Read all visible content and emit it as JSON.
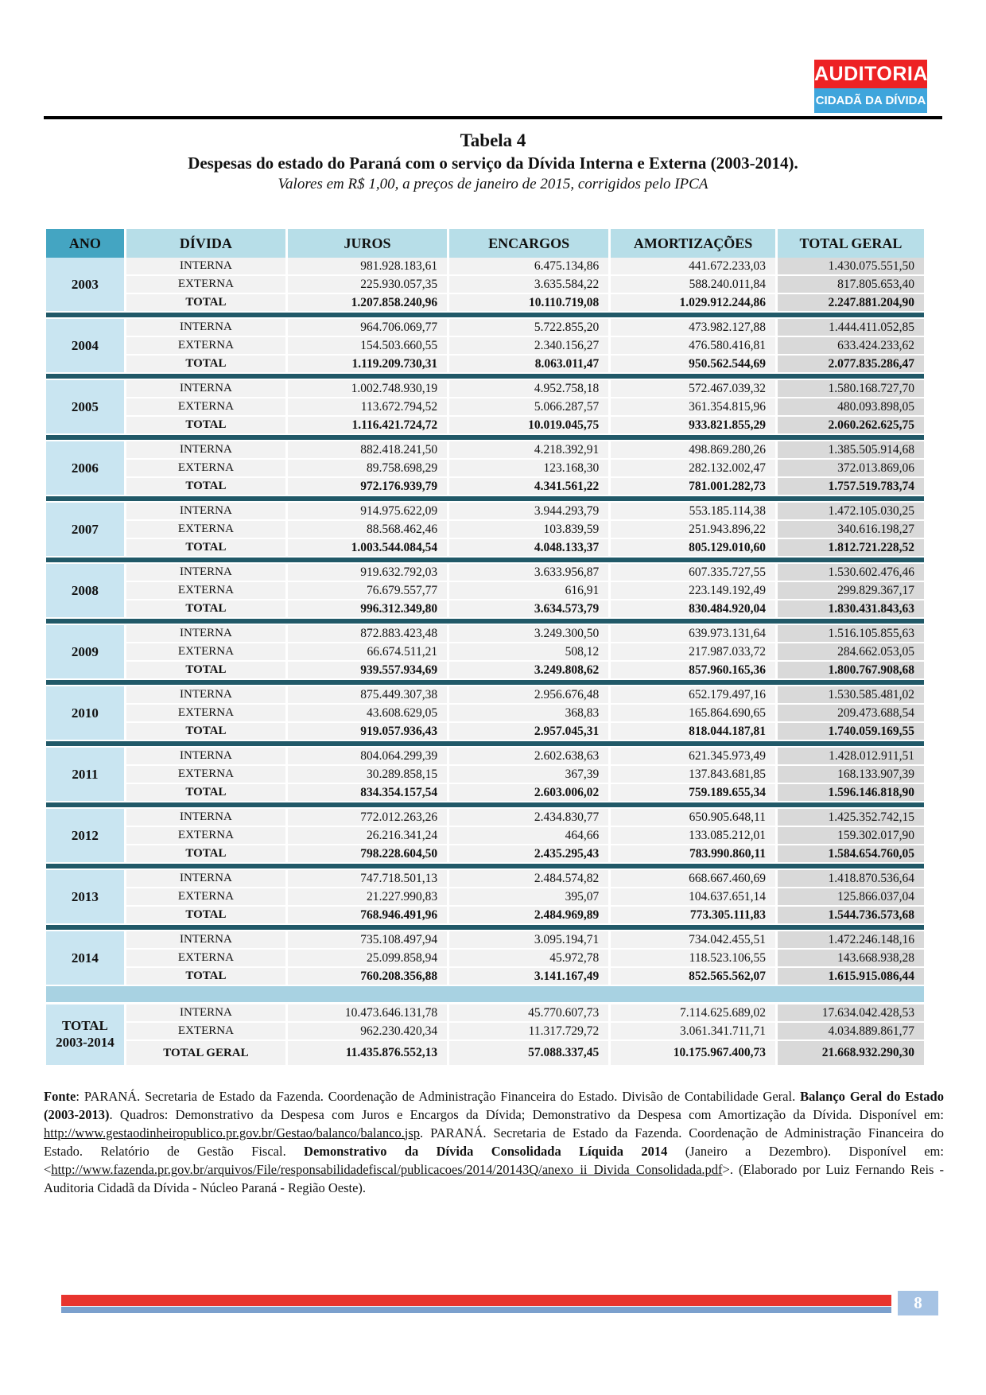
{
  "colors": {
    "logo_red": "#ED2224",
    "logo_blue": "#3FA5DC",
    "header_ano_bg": "#44A5C2",
    "header_bg": "#B7DEE8",
    "year_bg": "#C9E5F1",
    "cell_bg": "#F2F2F2",
    "total_col_bg": "#D9D9D9",
    "separator": "#215968",
    "band_bg": "#A8D2E2",
    "footer_red": "#E8342E",
    "footer_blue": "#7BA0CD",
    "page_box_bg": "#A6C3E4"
  },
  "logo": {
    "line1": "AUDITORIA",
    "line2": "CIDADÃ DA DÍVIDA"
  },
  "title": {
    "main": "Tabela 4",
    "subtitle": "Despesas do estado do Paraná com o serviço da Dívida Interna e Externa (2003-2014).",
    "note": "Valores em R$ 1,00, a preços de janeiro de 2015, corrigidos pelo IPCA"
  },
  "table": {
    "columns": [
      "ANO",
      "DÍVIDA",
      "JUROS",
      "ENCARGOS",
      "AMORTIZAÇÕES",
      "TOTAL GERAL"
    ],
    "row_labels": {
      "interna": "INTERNA",
      "externa": "EXTERNA",
      "total": "TOTAL",
      "total_geral": "TOTAL GERAL"
    },
    "years": [
      {
        "ano": "2003",
        "interna": [
          "981.928.183,61",
          "6.475.134,86",
          "441.672.233,03",
          "1.430.075.551,50"
        ],
        "externa": [
          "225.930.057,35",
          "3.635.584,22",
          "588.240.011,84",
          "817.805.653,40"
        ],
        "total": [
          "1.207.858.240,96",
          "10.110.719,08",
          "1.029.912.244,86",
          "2.247.881.204,90"
        ]
      },
      {
        "ano": "2004",
        "interna": [
          "964.706.069,77",
          "5.722.855,20",
          "473.982.127,88",
          "1.444.411.052,85"
        ],
        "externa": [
          "154.503.660,55",
          "2.340.156,27",
          "476.580.416,81",
          "633.424.233,62"
        ],
        "total": [
          "1.119.209.730,31",
          "8.063.011,47",
          "950.562.544,69",
          "2.077.835.286,47"
        ]
      },
      {
        "ano": "2005",
        "interna": [
          "1.002.748.930,19",
          "4.952.758,18",
          "572.467.039,32",
          "1.580.168.727,70"
        ],
        "externa": [
          "113.672.794,52",
          "5.066.287,57",
          "361.354.815,96",
          "480.093.898,05"
        ],
        "total": [
          "1.116.421.724,72",
          "10.019.045,75",
          "933.821.855,29",
          "2.060.262.625,75"
        ]
      },
      {
        "ano": "2006",
        "interna": [
          "882.418.241,50",
          "4.218.392,91",
          "498.869.280,26",
          "1.385.505.914,68"
        ],
        "externa": [
          "89.758.698,29",
          "123.168,30",
          "282.132.002,47",
          "372.013.869,06"
        ],
        "total": [
          "972.176.939,79",
          "4.341.561,22",
          "781.001.282,73",
          "1.757.519.783,74"
        ]
      },
      {
        "ano": "2007",
        "interna": [
          "914.975.622,09",
          "3.944.293,79",
          "553.185.114,38",
          "1.472.105.030,25"
        ],
        "externa": [
          "88.568.462,46",
          "103.839,59",
          "251.943.896,22",
          "340.616.198,27"
        ],
        "total": [
          "1.003.544.084,54",
          "4.048.133,37",
          "805.129.010,60",
          "1.812.721.228,52"
        ]
      },
      {
        "ano": "2008",
        "interna": [
          "919.632.792,03",
          "3.633.956,87",
          "607.335.727,55",
          "1.530.602.476,46"
        ],
        "externa": [
          "76.679.557,77",
          "616,91",
          "223.149.192,49",
          "299.829.367,17"
        ],
        "total": [
          "996.312.349,80",
          "3.634.573,79",
          "830.484.920,04",
          "1.830.431.843,63"
        ]
      },
      {
        "ano": "2009",
        "interna": [
          "872.883.423,48",
          "3.249.300,50",
          "639.973.131,64",
          "1.516.105.855,63"
        ],
        "externa": [
          "66.674.511,21",
          "508,12",
          "217.987.033,72",
          "284.662.053,05"
        ],
        "total": [
          "939.557.934,69",
          "3.249.808,62",
          "857.960.165,36",
          "1.800.767.908,68"
        ]
      },
      {
        "ano": "2010",
        "interna": [
          "875.449.307,38",
          "2.956.676,48",
          "652.179.497,16",
          "1.530.585.481,02"
        ],
        "externa": [
          "43.608.629,05",
          "368,83",
          "165.864.690,65",
          "209.473.688,54"
        ],
        "total": [
          "919.057.936,43",
          "2.957.045,31",
          "818.044.187,81",
          "1.740.059.169,55"
        ]
      },
      {
        "ano": "2011",
        "interna": [
          "804.064.299,39",
          "2.602.638,63",
          "621.345.973,49",
          "1.428.012.911,51"
        ],
        "externa": [
          "30.289.858,15",
          "367,39",
          "137.843.681,85",
          "168.133.907,39"
        ],
        "total": [
          "834.354.157,54",
          "2.603.006,02",
          "759.189.655,34",
          "1.596.146.818,90"
        ]
      },
      {
        "ano": "2012",
        "interna": [
          "772.012.263,26",
          "2.434.830,77",
          "650.905.648,11",
          "1.425.352.742,15"
        ],
        "externa": [
          "26.216.341,24",
          "464,66",
          "133.085.212,01",
          "159.302.017,90"
        ],
        "total": [
          "798.228.604,50",
          "2.435.295,43",
          "783.990.860,11",
          "1.584.654.760,05"
        ]
      },
      {
        "ano": "2013",
        "interna": [
          "747.718.501,13",
          "2.484.574,82",
          "668.667.460,69",
          "1.418.870.536,64"
        ],
        "externa": [
          "21.227.990,83",
          "395,07",
          "104.637.651,14",
          "125.866.037,04"
        ],
        "total": [
          "768.946.491,96",
          "2.484.969,89",
          "773.305.111,83",
          "1.544.736.573,68"
        ]
      },
      {
        "ano": "2014",
        "interna": [
          "735.108.497,94",
          "3.095.194,71",
          "734.042.455,51",
          "1.472.246.148,16"
        ],
        "externa": [
          "25.099.858,94",
          "45.972,78",
          "118.523.106,55",
          "143.668.938,28"
        ],
        "total": [
          "760.208.356,88",
          "3.141.167,49",
          "852.565.562,07",
          "1.615.915.086,44"
        ]
      }
    ],
    "grand_total": {
      "ano_line1": "TOTAL",
      "ano_line2": "2003-2014",
      "interna": [
        "10.473.646.131,78",
        "45.770.607,73",
        "7.114.625.689,02",
        "17.634.042.428,53"
      ],
      "externa": [
        "962.230.420,34",
        "11.317.729,72",
        "3.061.341.711,71",
        "4.034.889.861,77"
      ],
      "total_geral": [
        "11.435.876.552,13",
        "57.088.337,45",
        "10.175.967.400,73",
        "21.668.932.290,30"
      ]
    }
  },
  "source": {
    "segments": [
      {
        "text": "Fonte",
        "bold": true
      },
      {
        "text": ": PARANÁ.  Secretaria de Estado da Fazenda. Coordenação de Administração Financeira do Estado. Divisão de Contabilidade Geral. "
      },
      {
        "text": "Balanço Geral do Estado (2003-2013)",
        "bold": true
      },
      {
        "text": ".  Quadros: Demonstrativo da Despesa com Juros e Encargos da Dívida; Demonstrativo da Despesa com Amortização da Dívida. Disponível em: "
      },
      {
        "text": "http://www.gestaodinheiropublico.pr.gov.br/Gestao/balanco/balanco.jsp",
        "link": true
      },
      {
        "text": ". PARANÁ. Secretaria de Estado da Fazenda. Coordenação de Administração Financeira do Estado. Relatório de Gestão Fiscal. "
      },
      {
        "text": "Demonstrativo da Dívida Consolidada Líquida 2014",
        "bold": true
      },
      {
        "text": " (Janeiro a Dezembro). Disponível em: <"
      },
      {
        "text": "http://www.fazenda.pr.gov.br/arquivos/File/responsabilidadefiscal/publicacoes/2014/20143Q/anexo_ii_Divida_Consolidada.pdf",
        "link": true
      },
      {
        "text": ">. (Elaborado por Luiz Fernando Reis - Auditoria Cidadã da Dívida - Núcleo Paraná - Região Oeste)."
      }
    ]
  },
  "footer": {
    "page_number": "8"
  }
}
